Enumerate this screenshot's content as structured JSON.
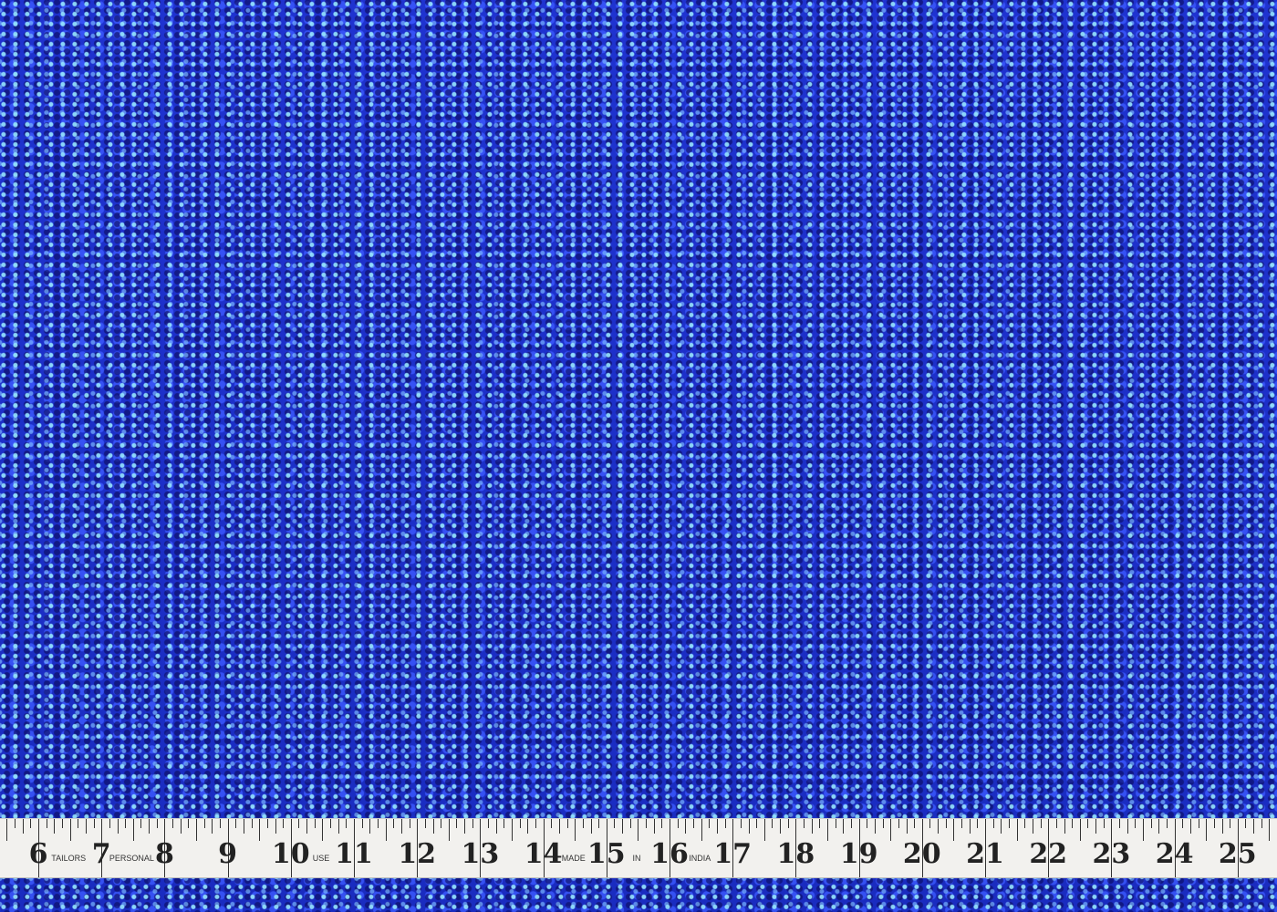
{
  "image": {
    "subject": "blue-sequin-fabric",
    "fabric_color": "#1f33d0",
    "sparkle_color": "#96e6ff"
  },
  "tape": {
    "numbers": [
      "6",
      "7",
      "8",
      "9",
      "10",
      "11",
      "12",
      "13",
      "14",
      "15",
      "16",
      "17",
      "18",
      "19",
      "20",
      "21",
      "22",
      "23",
      "24",
      "25"
    ],
    "words": [
      {
        "after": "6",
        "text": "TAILORS"
      },
      {
        "after": "7",
        "text": "PERSONAL"
      },
      {
        "after": "10",
        "text": "USE"
      },
      {
        "after": "14",
        "text": "MADE"
      },
      {
        "after": "15",
        "text": "IN"
      },
      {
        "after": "16",
        "text": "INDIA"
      }
    ]
  }
}
